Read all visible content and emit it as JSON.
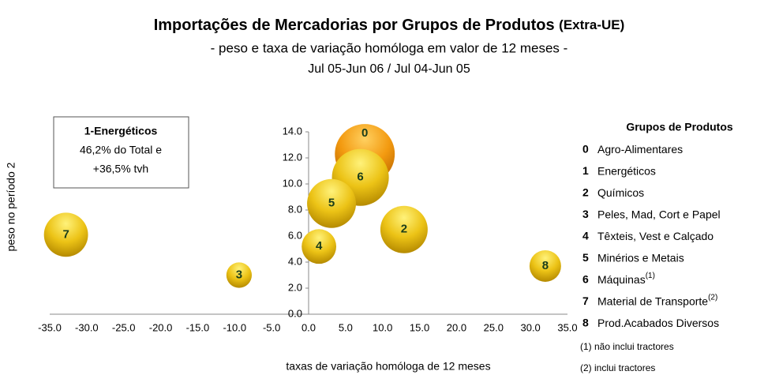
{
  "chart_data": {
    "type": "bubble",
    "title": "Importações de Mercadorias por Grupos de Produtos",
    "title_suffix": "(Extra-UE)",
    "subtitle": "- peso e taxa de variação homóloga em valor de 12 meses -",
    "period": "Jul 05-Jun 06  /  Jul 04-Jun 05",
    "x_label": "taxas de variação homóloga de 12 meses",
    "y_label": "peso no período 2",
    "xlim": [
      -35,
      35
    ],
    "xticks": [
      {
        "value": -35,
        "label": "-35.0"
      },
      {
        "value": -30,
        "label": "-30.0"
      },
      {
        "value": -25,
        "label": "-25.0"
      },
      {
        "value": -20,
        "label": "-20.0"
      },
      {
        "value": -15,
        "label": "-15.0"
      },
      {
        "value": -10,
        "label": "-10.0"
      },
      {
        "value": -5,
        "label": "-5.0"
      },
      {
        "value": 0,
        "label": "0.0"
      },
      {
        "value": 5,
        "label": "5.0"
      },
      {
        "value": 10,
        "label": "10.0"
      },
      {
        "value": 15,
        "label": "15.0"
      },
      {
        "value": 20,
        "label": "20.0"
      },
      {
        "value": 25,
        "label": "25.0"
      },
      {
        "value": 30,
        "label": "30.0"
      },
      {
        "value": 35,
        "label": "35.0"
      }
    ],
    "ylim": [
      0,
      14
    ],
    "yticks": [
      {
        "value": 0,
        "label": "0.0"
      },
      {
        "value": 2,
        "label": "2.0"
      },
      {
        "value": 4,
        "label": "4.0"
      },
      {
        "value": 6,
        "label": "6.0"
      },
      {
        "value": 8,
        "label": "8.0"
      },
      {
        "value": 10,
        "label": "10.0"
      },
      {
        "value": 12,
        "label": "12.0"
      },
      {
        "value": 14,
        "label": "14.0"
      }
    ],
    "series": [
      {
        "labels": [
          "0",
          "6",
          "5",
          "4",
          "2",
          "3",
          "7",
          "8"
        ],
        "x": [
          7.6,
          7.0,
          3.1,
          1.4,
          12.9,
          -9.4,
          -32.8,
          32.0
        ],
        "values": [
          12.3,
          10.5,
          8.5,
          5.2,
          6.5,
          3.0,
          6.1,
          3.7
        ],
        "sizes": [
          14.4,
          13.0,
          9.6,
          4.8,
          9.0,
          2.6,
          7.8,
          4.0
        ],
        "colors": [
          "orange",
          "gold",
          "gold",
          "gold",
          "gold",
          "gold",
          "gold",
          "gold"
        ]
      }
    ],
    "annotation": {
      "title": "1-Energéticos",
      "lines": [
        "46,2% do Total e",
        "+36,5% tvh"
      ]
    },
    "legend": {
      "title": "Grupos de Produtos",
      "items": [
        {
          "key": "0",
          "name": "Agro-Alimentares"
        },
        {
          "key": "1",
          "name": "Energéticos"
        },
        {
          "key": "2",
          "name": "Químicos"
        },
        {
          "key": "3",
          "name": "Peles, Mad, Cort e Papel"
        },
        {
          "key": "4",
          "name": "Têxteis, Vest e Calçado"
        },
        {
          "key": "5",
          "name": "Minérios e Metais"
        },
        {
          "key": "6",
          "name": "Máquinas",
          "sup": "(1)"
        },
        {
          "key": "7",
          "name": "Material de Transporte",
          "sup": "(2)"
        },
        {
          "key": "8",
          "name": "Prod.Acabados Diversos"
        }
      ],
      "notes": [
        "(1) não inclui tractores",
        "(2) inclui tractores"
      ]
    }
  }
}
